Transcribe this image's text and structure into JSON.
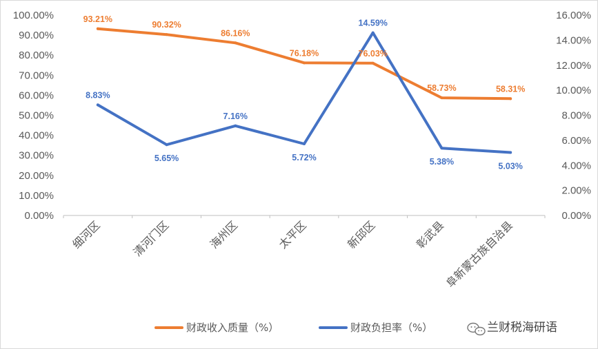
{
  "chart_data": {
    "type": "line",
    "categories": [
      "细河区",
      "清河门区",
      "海州区",
      "太平区",
      "新邱区",
      "彰武县",
      "阜新蒙古族自治县"
    ],
    "series": [
      {
        "name": "财政收入质量（%）",
        "axis": "left",
        "color": "#ED7D31",
        "values": [
          93.21,
          90.32,
          86.16,
          76.18,
          76.03,
          58.73,
          58.31
        ],
        "labels": [
          "93.21%",
          "90.32%",
          "86.16%",
          "76.18%",
          "76.03%",
          "58.73%",
          "58.31%"
        ]
      },
      {
        "name": "财政负担率（%）",
        "axis": "right",
        "color": "#4472C4",
        "values": [
          8.83,
          5.65,
          7.16,
          5.72,
          14.59,
          5.38,
          5.03
        ],
        "labels": [
          "8.83%",
          "5.65%",
          "7.16%",
          "5.72%",
          "14.59%",
          "5.38%",
          "5.03%"
        ]
      }
    ],
    "y_left": {
      "ylim": [
        0,
        100
      ],
      "ticks": [
        0,
        10,
        20,
        30,
        40,
        50,
        60,
        70,
        80,
        90,
        100
      ],
      "tick_labels": [
        "0.00%",
        "10.00%",
        "20.00%",
        "30.00%",
        "40.00%",
        "50.00%",
        "60.00%",
        "70.00%",
        "80.00%",
        "90.00%",
        "100.00%"
      ]
    },
    "y_right": {
      "ylim": [
        0,
        16
      ],
      "ticks": [
        0,
        2,
        4,
        6,
        8,
        10,
        12,
        14,
        16
      ],
      "tick_labels": [
        "0.00%",
        "2.00%",
        "4.00%",
        "6.00%",
        "8.00%",
        "10.00%",
        "12.00%",
        "14.00%",
        "16.00%"
      ]
    },
    "grid": false,
    "legend_position": "bottom-center",
    "title": "",
    "xlabel": "",
    "ylabel": ""
  },
  "watermark": {
    "text": "兰财税海研语",
    "icon": "wechat-icon"
  }
}
